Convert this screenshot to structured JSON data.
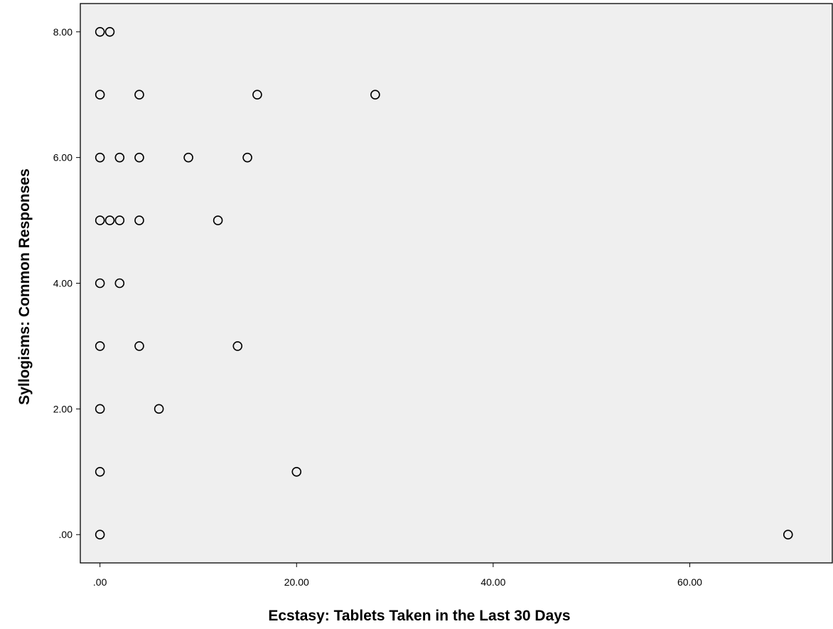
{
  "chart_data": {
    "type": "scatter",
    "xlabel": "Ecstasy: Tablets Taken in the Last 30 Days",
    "ylabel": "Syllogisms: Common Responses",
    "xlim": [
      -2,
      74.5
    ],
    "ylim": [
      -0.45,
      8.45
    ],
    "x_ticks": [
      0,
      20,
      40,
      60
    ],
    "x_tick_labels": [
      ".00",
      "20.00",
      "40.00",
      "60.00"
    ],
    "y_ticks": [
      0,
      2,
      4,
      6,
      8
    ],
    "y_tick_labels": [
      ".00",
      "2.00",
      "4.00",
      "6.00",
      "8.00"
    ],
    "grid": false,
    "colors": {
      "plot_background": "#efefef",
      "marker": "#000000",
      "frame": "#000000"
    },
    "points": [
      {
        "x": 0,
        "y": 8
      },
      {
        "x": 1,
        "y": 8
      },
      {
        "x": 0,
        "y": 7
      },
      {
        "x": 4,
        "y": 7
      },
      {
        "x": 16,
        "y": 7
      },
      {
        "x": 28,
        "y": 7
      },
      {
        "x": 0,
        "y": 6
      },
      {
        "x": 2,
        "y": 6
      },
      {
        "x": 4,
        "y": 6
      },
      {
        "x": 9,
        "y": 6
      },
      {
        "x": 15,
        "y": 6
      },
      {
        "x": 0,
        "y": 5
      },
      {
        "x": 1,
        "y": 5
      },
      {
        "x": 2,
        "y": 5
      },
      {
        "x": 4,
        "y": 5
      },
      {
        "x": 12,
        "y": 5
      },
      {
        "x": 0,
        "y": 4
      },
      {
        "x": 2,
        "y": 4
      },
      {
        "x": 0,
        "y": 3
      },
      {
        "x": 4,
        "y": 3
      },
      {
        "x": 14,
        "y": 3
      },
      {
        "x": 0,
        "y": 2
      },
      {
        "x": 6,
        "y": 2
      },
      {
        "x": 0,
        "y": 1
      },
      {
        "x": 20,
        "y": 1
      },
      {
        "x": 0,
        "y": 0
      },
      {
        "x": 70,
        "y": 0
      }
    ]
  }
}
